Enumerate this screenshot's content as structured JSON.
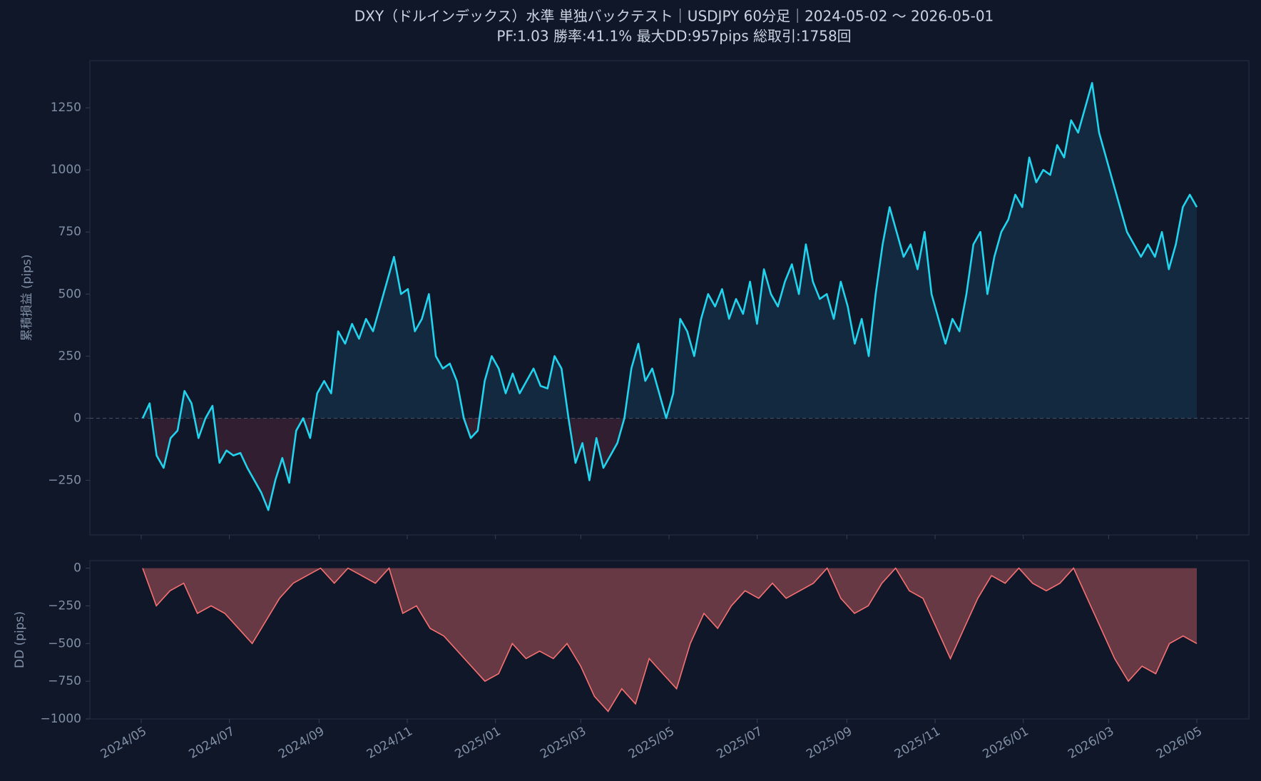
{
  "chart_data": [
    {
      "type": "line",
      "title": "DXY（ドルインデックス）水準 単独バックテスト｜USDJPY 60分足｜2024-05-02 〜 2026-05-01",
      "subtitle": "PF:1.03  勝率:41.1%  最大DD:957pips  総取引:1758回",
      "y_label": "累積損益 (pips)",
      "xlim": [
        "2024-05-02",
        "2026-05-01"
      ],
      "ylim": [
        -470,
        1440
      ],
      "yticks": [
        {
          "value": -250,
          "label": "−250"
        },
        0,
        250,
        500,
        750,
        1000,
        1250
      ],
      "color": "#22d3ee",
      "values": [
        0,
        60,
        -150,
        -200,
        -80,
        -50,
        110,
        60,
        -80,
        0,
        50,
        -180,
        -130,
        -150,
        -140,
        -200,
        -250,
        -300,
        -370,
        -250,
        -160,
        -260,
        -50,
        0,
        -80,
        100,
        150,
        100,
        350,
        300,
        380,
        320,
        400,
        350,
        450,
        550,
        650,
        500,
        520,
        350,
        400,
        500,
        250,
        200,
        220,
        150,
        0,
        -80,
        -50,
        150,
        250,
        200,
        100,
        180,
        100,
        150,
        200,
        130,
        120,
        250,
        200,
        0,
        -180,
        -100,
        -250,
        -80,
        -200,
        -150,
        -100,
        0,
        200,
        300,
        150,
        200,
        100,
        0,
        100,
        400,
        350,
        250,
        400,
        500,
        450,
        520,
        400,
        480,
        420,
        550,
        380,
        600,
        500,
        450,
        550,
        620,
        500,
        700,
        550,
        480,
        500,
        400,
        550,
        450,
        300,
        400,
        250,
        500,
        700,
        850,
        750,
        650,
        700,
        600,
        750,
        500,
        400,
        300,
        400,
        350,
        500,
        700,
        750,
        500,
        650,
        750,
        800,
        900,
        850,
        1050,
        950,
        1000,
        980,
        1100,
        1050,
        1200,
        1150,
        1250,
        1350,
        1150,
        1050,
        950,
        850,
        750,
        700,
        650,
        700,
        650,
        750,
        600,
        700,
        850,
        900,
        850
      ]
    },
    {
      "type": "area",
      "y_label": "DD (pips)",
      "xlim": [
        "2024-05-02",
        "2026-05-01"
      ],
      "xticks": [
        "2024/05",
        "2024/07",
        "2024/09",
        "2024/11",
        "2025/01",
        "2025/03",
        "2025/05",
        "2025/07",
        "2025/09",
        "2025/11",
        "2026/01",
        "2026/03",
        "2026/05"
      ],
      "ylim": [
        -1000,
        50
      ],
      "yticks": [
        {
          "value": -1000,
          "label": "−1000"
        },
        {
          "value": -750,
          "label": "−750"
        },
        {
          "value": -500,
          "label": "−500"
        },
        {
          "value": -250,
          "label": "−250"
        },
        0
      ],
      "color": "#f87171",
      "values": [
        0,
        -250,
        -150,
        -100,
        -300,
        -250,
        -300,
        -400,
        -500,
        -350,
        -200,
        -100,
        -50,
        0,
        -100,
        0,
        -50,
        -100,
        0,
        -300,
        -250,
        -400,
        -450,
        -550,
        -650,
        -750,
        -700,
        -500,
        -600,
        -550,
        -600,
        -500,
        -650,
        -850,
        -950,
        -800,
        -900,
        -600,
        -700,
        -800,
        -500,
        -300,
        -400,
        -250,
        -150,
        -200,
        -100,
        -200,
        -150,
        -100,
        0,
        -200,
        -300,
        -250,
        -100,
        0,
        -150,
        -200,
        -400,
        -600,
        -400,
        -200,
        -50,
        -100,
        0,
        -100,
        -150,
        -100,
        0,
        -200,
        -400,
        -600,
        -750,
        -650,
        -700,
        -500,
        -450,
        -500
      ]
    }
  ]
}
